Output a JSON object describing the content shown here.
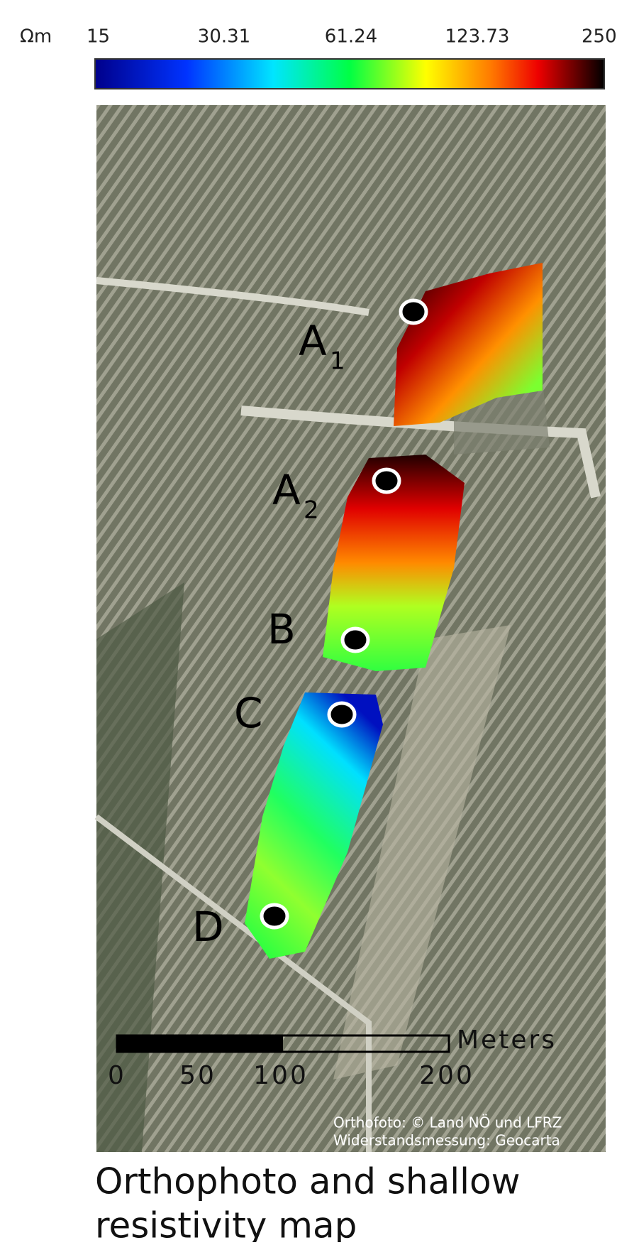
{
  "colorbar": {
    "unit": "Ωm",
    "ticks": [
      "15",
      "30.31",
      "61.24",
      "123.73",
      "250"
    ]
  },
  "sites": [
    {
      "letter": "A",
      "index": "1"
    },
    {
      "letter": "A",
      "index": "2"
    },
    {
      "letter": "B"
    },
    {
      "letter": "C"
    },
    {
      "letter": "D"
    }
  ],
  "scale_bar": {
    "unit": "Meters",
    "ticks": [
      "0",
      "50",
      "100",
      "200"
    ]
  },
  "credits": [
    "Orthofoto: © Land NÖ und LFRZ",
    "Widerstandsmessung:  Geocarta"
  ],
  "caption": [
    "Orthophoto and shallow",
    "resistivity map"
  ]
}
